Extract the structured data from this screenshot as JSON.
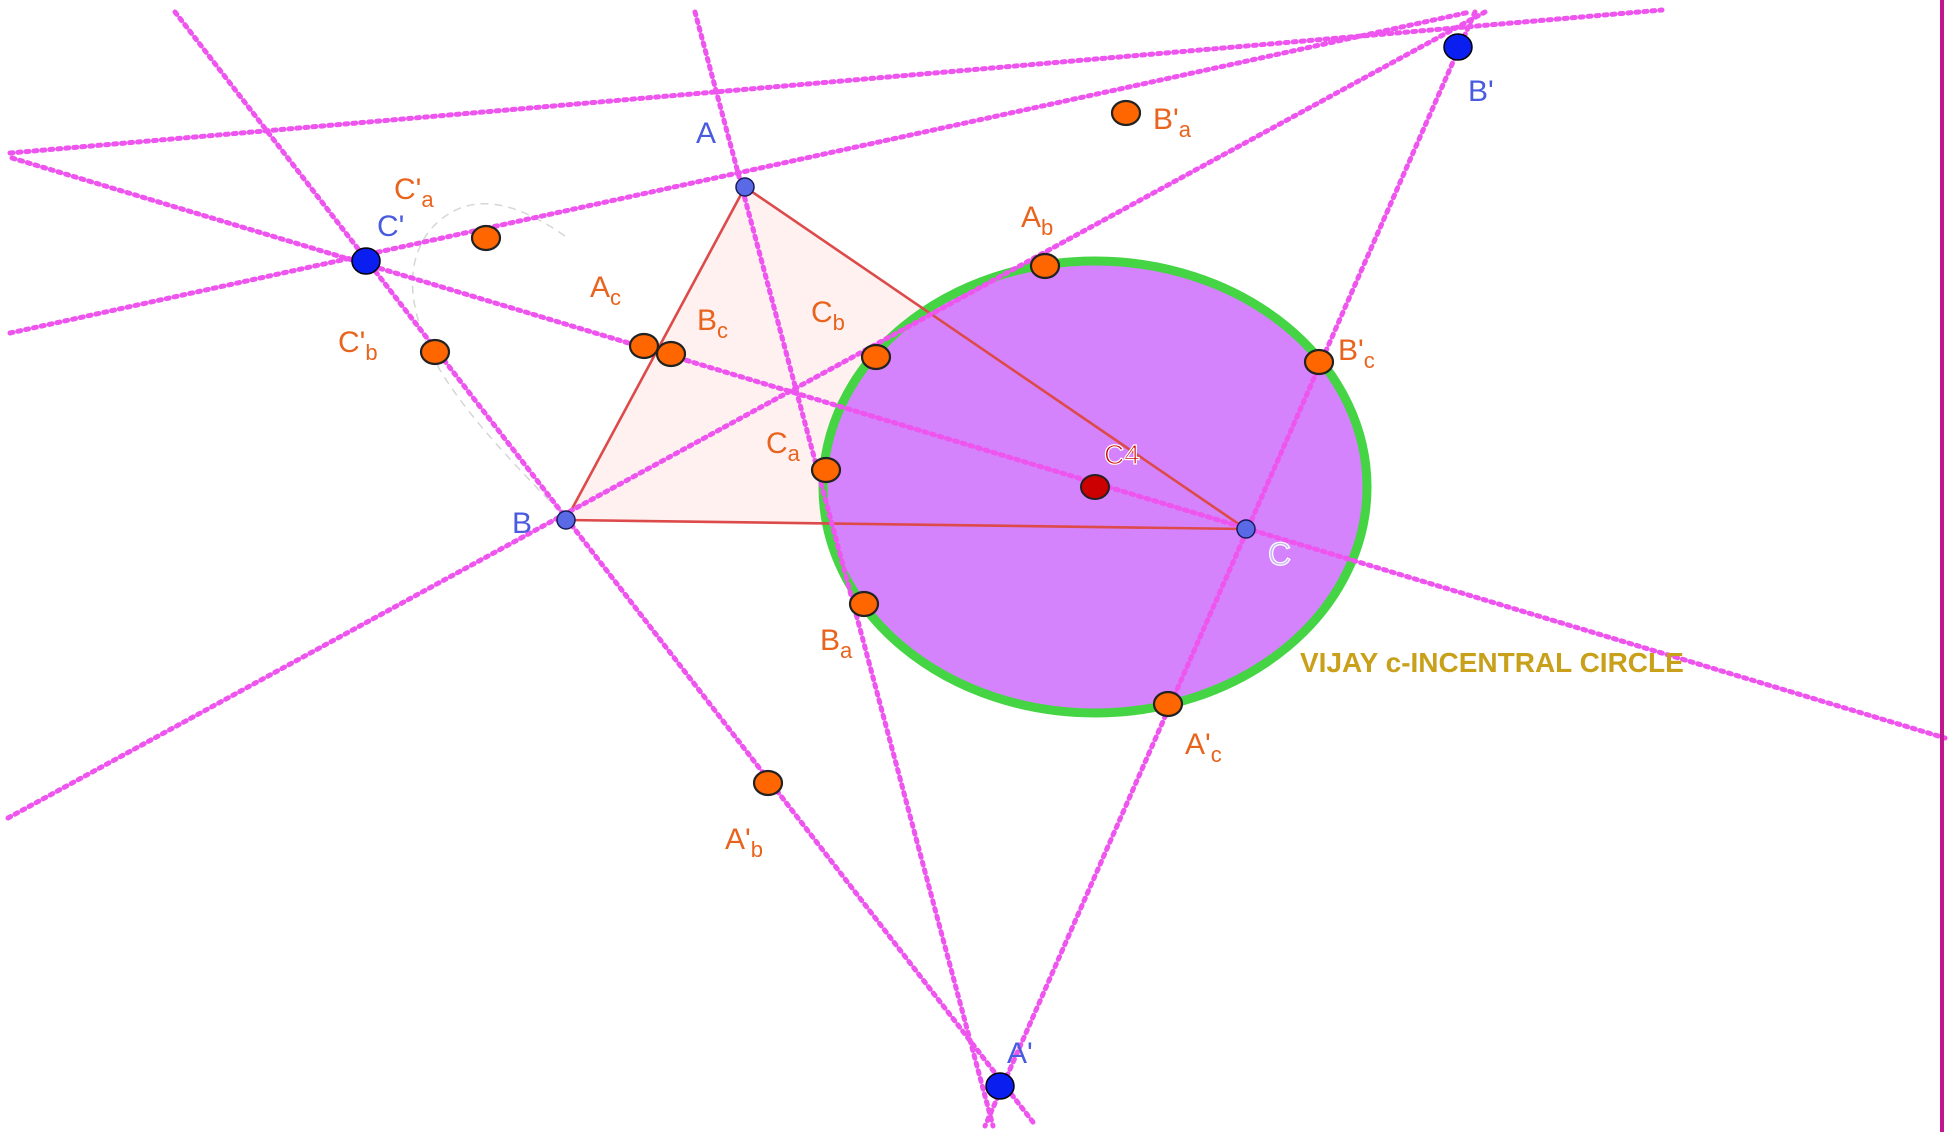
{
  "colors": {
    "cevian": "#ee55ee",
    "triangle_edge": "#dd4a4a",
    "triangle_fill": "#fdeceb",
    "circle_fill": "#d27cfc",
    "circle_stroke": "#44d444",
    "point_orange": "#ff6600",
    "point_blue": "#0a1ef0",
    "vertex_blue": "#5a6ae6",
    "center_red": "#cc0000",
    "caption": "#c8a01a",
    "frame": "#c0188c"
  },
  "caption": "VIJAY c-INCENTRAL CIRCLE",
  "center_label": "C4",
  "vertices": [
    {
      "name": "A",
      "label": "A"
    },
    {
      "name": "B",
      "label": "B"
    },
    {
      "name": "C",
      "label": "C"
    }
  ],
  "excenters": [
    {
      "name": "A-prime",
      "label": "A'"
    },
    {
      "name": "B-prime",
      "label": "B'"
    },
    {
      "name": "C-prime",
      "label": "C'"
    }
  ],
  "points": [
    {
      "name": "A-sub-b",
      "base": "A",
      "sub": "b"
    },
    {
      "name": "A-sub-c",
      "base": "A",
      "sub": "c"
    },
    {
      "name": "B-sub-a",
      "base": "B",
      "sub": "a"
    },
    {
      "name": "B-sub-c",
      "base": "B",
      "sub": "c"
    },
    {
      "name": "C-sub-a",
      "base": "C",
      "sub": "a"
    },
    {
      "name": "C-sub-b",
      "base": "C",
      "sub": "b"
    },
    {
      "name": "A-prime-sub-b",
      "base": "A'",
      "sub": "b"
    },
    {
      "name": "A-prime-sub-c",
      "base": "A'",
      "sub": "c"
    },
    {
      "name": "B-prime-sub-a",
      "base": "B'",
      "sub": "a"
    },
    {
      "name": "B-prime-sub-c",
      "base": "B'",
      "sub": "c"
    },
    {
      "name": "C-prime-sub-a",
      "base": "C'",
      "sub": "a"
    },
    {
      "name": "C-prime-sub-b",
      "base": "C'",
      "sub": "b"
    }
  ]
}
